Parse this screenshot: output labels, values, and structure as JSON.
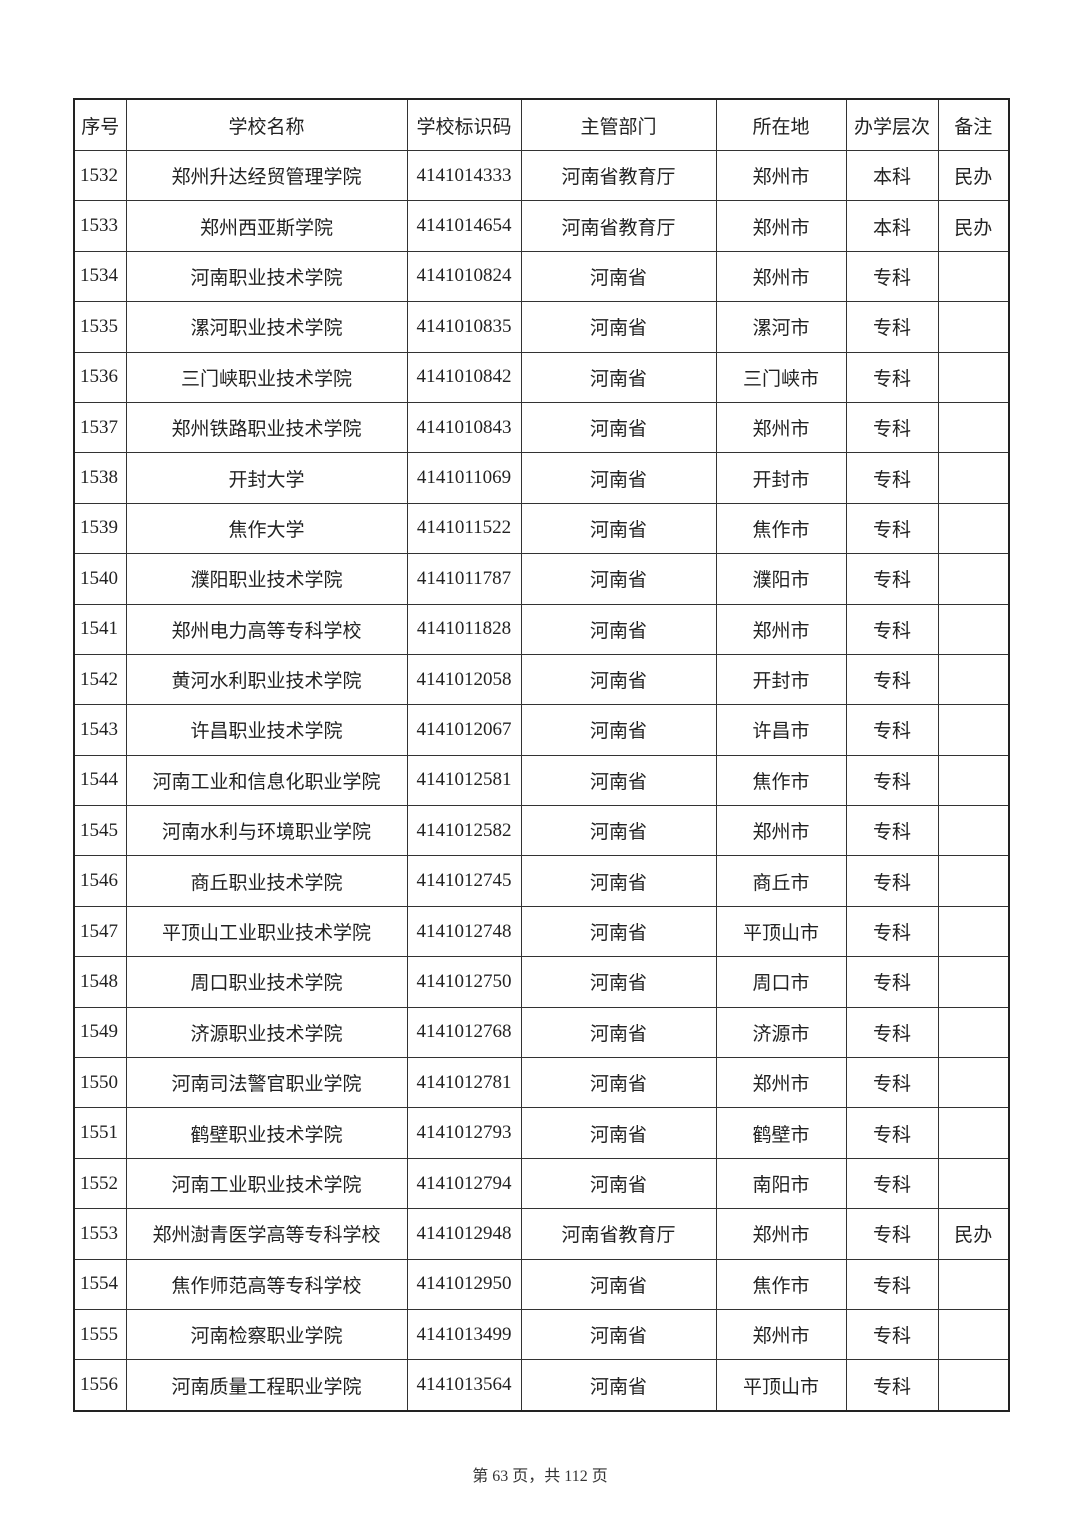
{
  "columns": [
    "序号",
    "学校名称",
    "学校标识码",
    "主管部门",
    "所在地",
    "办学层次",
    "备注"
  ],
  "rows": [
    [
      "1532",
      "郑州升达经贸管理学院",
      "4141014333",
      "河南省教育厅",
      "郑州市",
      "本科",
      "民办"
    ],
    [
      "1533",
      "郑州西亚斯学院",
      "4141014654",
      "河南省教育厅",
      "郑州市",
      "本科",
      "民办"
    ],
    [
      "1534",
      "河南职业技术学院",
      "4141010824",
      "河南省",
      "郑州市",
      "专科",
      ""
    ],
    [
      "1535",
      "漯河职业技术学院",
      "4141010835",
      "河南省",
      "漯河市",
      "专科",
      ""
    ],
    [
      "1536",
      "三门峡职业技术学院",
      "4141010842",
      "河南省",
      "三门峡市",
      "专科",
      ""
    ],
    [
      "1537",
      "郑州铁路职业技术学院",
      "4141010843",
      "河南省",
      "郑州市",
      "专科",
      ""
    ],
    [
      "1538",
      "开封大学",
      "4141011069",
      "河南省",
      "开封市",
      "专科",
      ""
    ],
    [
      "1539",
      "焦作大学",
      "4141011522",
      "河南省",
      "焦作市",
      "专科",
      ""
    ],
    [
      "1540",
      "濮阳职业技术学院",
      "4141011787",
      "河南省",
      "濮阳市",
      "专科",
      ""
    ],
    [
      "1541",
      "郑州电力高等专科学校",
      "4141011828",
      "河南省",
      "郑州市",
      "专科",
      ""
    ],
    [
      "1542",
      "黄河水利职业技术学院",
      "4141012058",
      "河南省",
      "开封市",
      "专科",
      ""
    ],
    [
      "1543",
      "许昌职业技术学院",
      "4141012067",
      "河南省",
      "许昌市",
      "专科",
      ""
    ],
    [
      "1544",
      "河南工业和信息化职业学院",
      "4141012581",
      "河南省",
      "焦作市",
      "专科",
      ""
    ],
    [
      "1545",
      "河南水利与环境职业学院",
      "4141012582",
      "河南省",
      "郑州市",
      "专科",
      ""
    ],
    [
      "1546",
      "商丘职业技术学院",
      "4141012745",
      "河南省",
      "商丘市",
      "专科",
      ""
    ],
    [
      "1547",
      "平顶山工业职业技术学院",
      "4141012748",
      "河南省",
      "平顶山市",
      "专科",
      ""
    ],
    [
      "1548",
      "周口职业技术学院",
      "4141012750",
      "河南省",
      "周口市",
      "专科",
      ""
    ],
    [
      "1549",
      "济源职业技术学院",
      "4141012768",
      "河南省",
      "济源市",
      "专科",
      ""
    ],
    [
      "1550",
      "河南司法警官职业学院",
      "4141012781",
      "河南省",
      "郑州市",
      "专科",
      ""
    ],
    [
      "1551",
      "鹤壁职业技术学院",
      "4141012793",
      "河南省",
      "鹤壁市",
      "专科",
      ""
    ],
    [
      "1552",
      "河南工业职业技术学院",
      "4141012794",
      "河南省",
      "南阳市",
      "专科",
      ""
    ],
    [
      "1553",
      "郑州澍青医学高等专科学校",
      "4141012948",
      "河南省教育厅",
      "郑州市",
      "专科",
      "民办"
    ],
    [
      "1554",
      "焦作师范高等专科学校",
      "4141012950",
      "河南省",
      "焦作市",
      "专科",
      ""
    ],
    [
      "1555",
      "河南检察职业学院",
      "4141013499",
      "河南省",
      "郑州市",
      "专科",
      ""
    ],
    [
      "1556",
      "河南质量工程职业学院",
      "4141013564",
      "河南省",
      "平顶山市",
      "专科",
      ""
    ]
  ],
  "footer": "第 63 页，共 112 页"
}
